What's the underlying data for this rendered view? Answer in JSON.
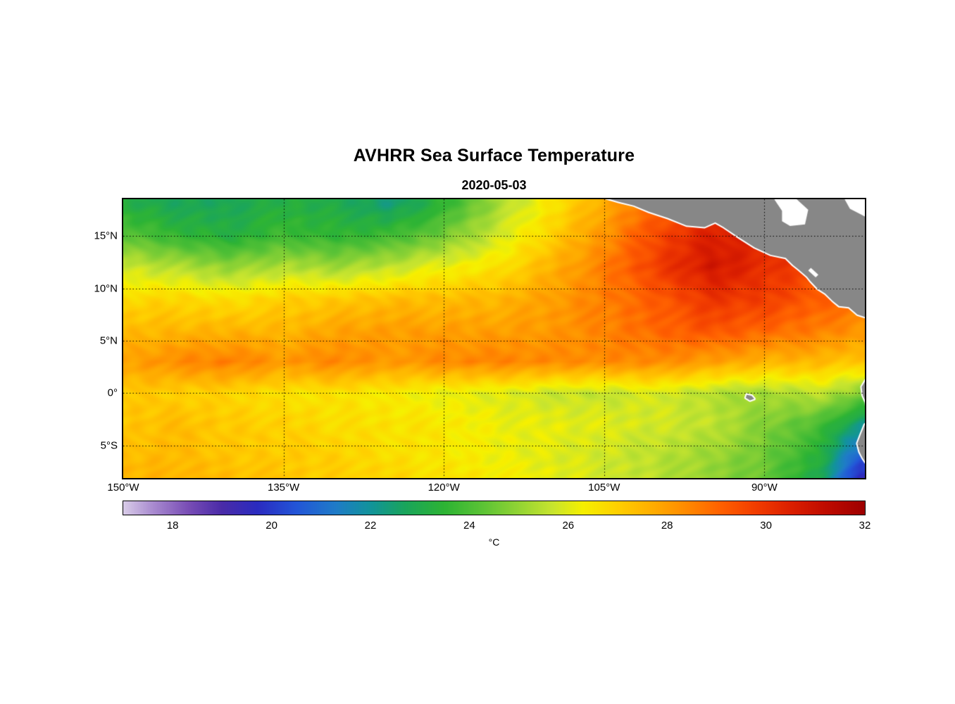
{
  "title": "AVHRR Sea Surface Temperature",
  "subtitle": "2020-05-03",
  "colorbar": {
    "label": "°C",
    "ticks": [
      18,
      20,
      22,
      24,
      26,
      28,
      30,
      32
    ],
    "range": [
      17,
      32
    ]
  },
  "axes": {
    "x_ticks": [
      {
        "lon": -150,
        "label": "150°W"
      },
      {
        "lon": -135,
        "label": "135°W"
      },
      {
        "lon": -120,
        "label": "120°W"
      },
      {
        "lon": -105,
        "label": "105°W"
      },
      {
        "lon": -90,
        "label": "90°W"
      }
    ],
    "y_ticks": [
      {
        "lat": 15,
        "label": "15°N"
      },
      {
        "lat": 10,
        "label": "10°N"
      },
      {
        "lat": 5,
        "label": "5°N"
      },
      {
        "lat": 0,
        "label": "0°"
      },
      {
        "lat": -5,
        "label": "5°S"
      }
    ]
  },
  "chart_data": {
    "type": "heatmap",
    "title": "AVHRR Sea Surface Temperature",
    "subtitle": "2020-05-03",
    "units": "°C",
    "lon_range": [
      -150,
      -80.6
    ],
    "lat_range": [
      -8.1,
      18.5
    ],
    "value_range": [
      17,
      32
    ],
    "gridlines": {
      "lons": [
        -135,
        -120,
        -105,
        -90
      ],
      "lats": [
        15,
        10,
        5,
        0,
        -5
      ]
    },
    "grid_lons": [
      -150,
      -145,
      -140,
      -135,
      -130,
      -125,
      -120,
      -115,
      -110,
      -105,
      -100,
      -95,
      -90,
      -85,
      -81
    ],
    "grid_lats": [
      18,
      15,
      12,
      9,
      6,
      3,
      0,
      -3,
      -6,
      -8
    ],
    "sst": [
      [
        23.2,
        22.8,
        22.8,
        23.2,
        23.0,
        22.4,
        23.5,
        25.2,
        26.5,
        27.8,
        29.0,
        29.6,
        29.5,
        29.0,
        28.5
      ],
      [
        24.2,
        23.6,
        23.2,
        23.8,
        23.5,
        23.8,
        24.6,
        25.8,
        27.0,
        28.2,
        29.6,
        30.6,
        30.4,
        29.6,
        29.0
      ],
      [
        25.8,
        25.4,
        25.0,
        25.4,
        25.2,
        25.6,
        26.2,
        26.6,
        27.6,
        28.6,
        29.8,
        30.8,
        30.2,
        29.6,
        29.2
      ],
      [
        26.8,
        26.9,
        26.6,
        27.0,
        27.1,
        27.4,
        27.4,
        27.5,
        28.0,
        28.6,
        29.2,
        30.0,
        29.8,
        29.2,
        28.8
      ],
      [
        27.4,
        27.5,
        27.6,
        27.5,
        27.9,
        28.0,
        28.0,
        28.0,
        28.1,
        28.5,
        29.0,
        29.4,
        29.0,
        28.6,
        28.2
      ],
      [
        27.9,
        28.4,
        28.6,
        28.1,
        28.5,
        28.1,
        28.4,
        28.5,
        28.4,
        28.4,
        28.4,
        28.0,
        27.6,
        27.5,
        27.2
      ],
      [
        27.2,
        27.0,
        26.9,
        26.6,
        26.6,
        26.4,
        26.1,
        26.0,
        25.7,
        25.6,
        25.9,
        25.4,
        25.2,
        25.6,
        24.8
      ],
      [
        27.2,
        27.4,
        27.1,
        27.0,
        26.7,
        26.6,
        26.5,
        26.2,
        26.1,
        26.0,
        25.8,
        25.6,
        24.8,
        24.0,
        22.2
      ],
      [
        27.4,
        27.5,
        27.2,
        27.1,
        27.0,
        26.7,
        26.5,
        26.2,
        26.0,
        25.8,
        25.5,
        25.1,
        24.5,
        23.4,
        20.6
      ],
      [
        27.5,
        27.6,
        27.4,
        27.2,
        27.0,
        26.9,
        26.6,
        26.4,
        26.1,
        25.8,
        25.5,
        25.0,
        24.4,
        23.0,
        19.6
      ]
    ],
    "colormap_stops": [
      [
        17.0,
        "#D9CCE8"
      ],
      [
        17.6,
        "#A98BD0"
      ],
      [
        18.3,
        "#7A4FB6"
      ],
      [
        19.0,
        "#4A2BA8"
      ],
      [
        19.7,
        "#2B2BC0"
      ],
      [
        20.5,
        "#2356D8"
      ],
      [
        21.3,
        "#1F7CC8"
      ],
      [
        22.0,
        "#12949B"
      ],
      [
        22.7,
        "#1AA55C"
      ],
      [
        23.5,
        "#2EB434"
      ],
      [
        24.3,
        "#5EC436"
      ],
      [
        25.0,
        "#93D434"
      ],
      [
        25.7,
        "#C9E52E"
      ],
      [
        26.3,
        "#F6F000"
      ],
      [
        27.0,
        "#FFD000"
      ],
      [
        27.7,
        "#FFAE00"
      ],
      [
        28.4,
        "#FF8A00"
      ],
      [
        29.1,
        "#FF6000"
      ],
      [
        29.8,
        "#F23D00"
      ],
      [
        30.5,
        "#DC2000"
      ],
      [
        31.2,
        "#C00C00"
      ],
      [
        32.0,
        "#9E0000"
      ]
    ],
    "land_color": "#878787",
    "land": {
      "central_america": [
        [
          -104.8,
          18.6
        ],
        [
          -103.6,
          18.25
        ],
        [
          -102.2,
          17.9
        ],
        [
          -100.8,
          17.3
        ],
        [
          -99.0,
          16.7
        ],
        [
          -97.3,
          16.0
        ],
        [
          -95.6,
          15.85
        ],
        [
          -94.6,
          16.3
        ],
        [
          -93.9,
          15.9
        ],
        [
          -92.3,
          14.8
        ],
        [
          -90.9,
          13.9
        ],
        [
          -89.4,
          13.2
        ],
        [
          -88.0,
          12.9
        ],
        [
          -87.3,
          12.2
        ],
        [
          -86.8,
          11.8
        ],
        [
          -86.0,
          11.1
        ],
        [
          -85.7,
          10.7
        ],
        [
          -85.0,
          9.95
        ],
        [
          -84.3,
          9.5
        ],
        [
          -83.6,
          8.8
        ],
        [
          -83.0,
          8.3
        ],
        [
          -82.1,
          8.2
        ],
        [
          -81.3,
          7.5
        ],
        [
          -80.4,
          7.2
        ],
        [
          -79.4,
          7.6
        ],
        [
          -78.5,
          7.9
        ],
        [
          -78.5,
          19.2
        ],
        [
          -104.8,
          19.2
        ]
      ],
      "south_america": [
        [
          -80.0,
          2.2
        ],
        [
          -80.6,
          1.1
        ],
        [
          -80.9,
          0.6
        ],
        [
          -80.8,
          -0.2
        ],
        [
          -80.5,
          -0.9
        ],
        [
          -80.4,
          -2.0
        ],
        [
          -80.0,
          -2.6
        ],
        [
          -80.6,
          -3.0
        ],
        [
          -81.0,
          -4.0
        ],
        [
          -81.3,
          -4.8
        ],
        [
          -81.1,
          -5.6
        ],
        [
          -80.8,
          -6.2
        ],
        [
          -80.4,
          -6.8
        ],
        [
          -79.9,
          -7.6
        ],
        [
          -79.5,
          -8.4
        ],
        [
          -78.0,
          -8.4
        ],
        [
          -78.0,
          2.2
        ]
      ],
      "galapagos": [
        [
          -91.65,
          -0.15
        ],
        [
          -91.2,
          -0.25
        ],
        [
          -90.95,
          -0.55
        ],
        [
          -91.35,
          -0.7
        ],
        [
          -91.75,
          -0.45
        ]
      ],
      "white_patches": [
        [
          [
            -89.2,
            18.7
          ],
          [
            -87.2,
            18.7
          ],
          [
            -85.9,
            17.5
          ],
          [
            -86.2,
            16.1
          ],
          [
            -87.6,
            15.95
          ],
          [
            -88.35,
            16.4
          ],
          [
            -88.35,
            17.4
          ],
          [
            -88.85,
            18.15
          ]
        ],
        [
          [
            -82.6,
            18.7
          ],
          [
            -80.5,
            18.7
          ],
          [
            -80.5,
            16.8
          ],
          [
            -82.0,
            17.6
          ]
        ],
        [
          [
            -85.9,
            11.7
          ],
          [
            -85.2,
            11.05
          ],
          [
            -84.95,
            11.3
          ],
          [
            -85.65,
            11.95
          ]
        ]
      ]
    }
  }
}
